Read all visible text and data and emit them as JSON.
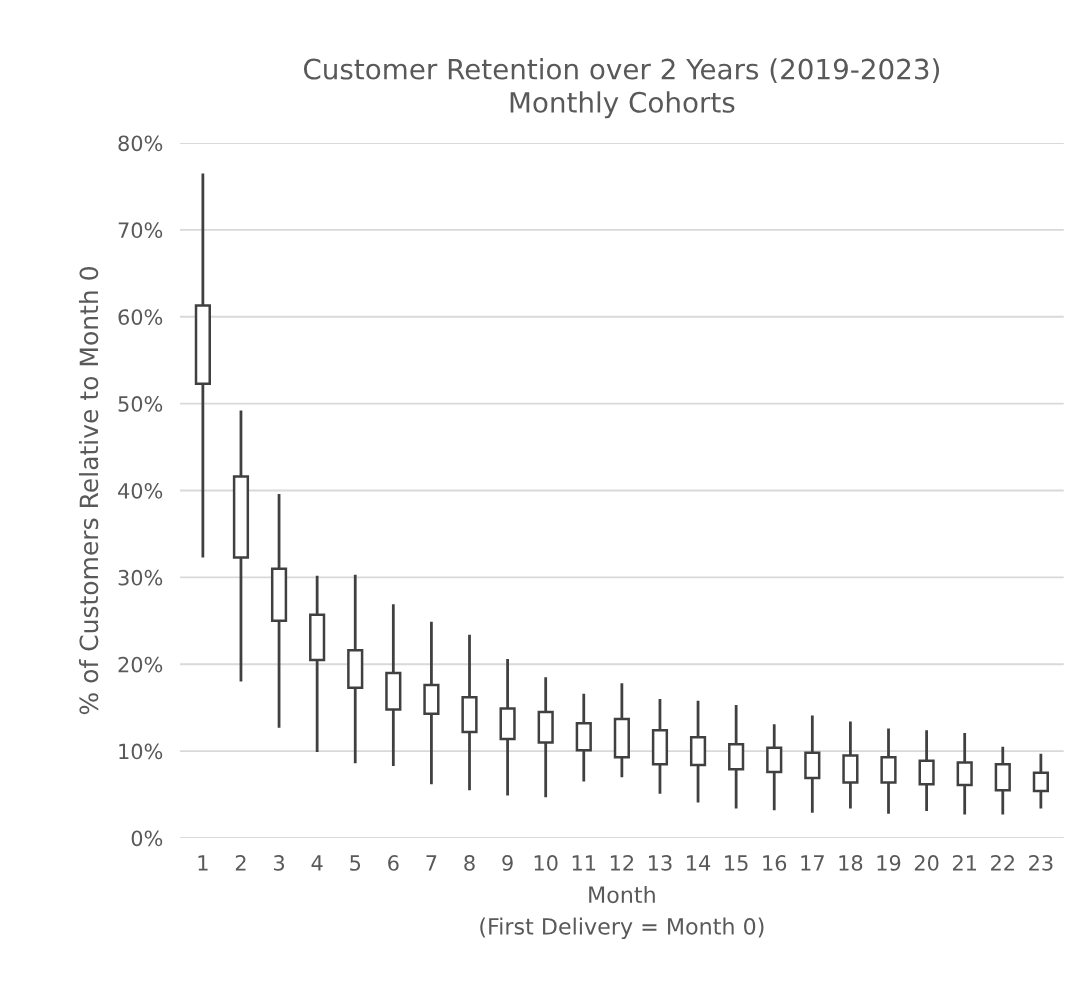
{
  "chart_data": {
    "type": "candlestick",
    "title": "Customer Retention over 2 Years (2019-2023)\nMonthly Cohorts",
    "xlabel": "Month\n(First Delivery = Month 0)",
    "ylabel": "% of Customers Relative to Month 0",
    "categories": [
      "1",
      "2",
      "3",
      "4",
      "5",
      "6",
      "7",
      "8",
      "9",
      "10",
      "11",
      "12",
      "13",
      "14",
      "15",
      "16",
      "17",
      "18",
      "19",
      "20",
      "21",
      "22",
      "23"
    ],
    "ohlc": [
      [
        52.3,
        76.5,
        32.3,
        61.3
      ],
      [
        32.3,
        49.2,
        18.0,
        41.6
      ],
      [
        25.0,
        39.6,
        12.7,
        31.0
      ],
      [
        20.5,
        30.2,
        9.9,
        25.7
      ],
      [
        17.3,
        30.3,
        8.6,
        21.6
      ],
      [
        14.8,
        26.9,
        8.3,
        19.0
      ],
      [
        14.3,
        24.9,
        6.2,
        17.6
      ],
      [
        12.2,
        23.4,
        5.5,
        16.2
      ],
      [
        11.4,
        20.6,
        4.9,
        14.9
      ],
      [
        11.0,
        18.5,
        4.7,
        14.5
      ],
      [
        10.1,
        16.6,
        6.5,
        13.2
      ],
      [
        9.3,
        17.8,
        7.0,
        13.7
      ],
      [
        8.5,
        16.0,
        5.1,
        12.4
      ],
      [
        8.4,
        15.8,
        4.1,
        11.6
      ],
      [
        7.9,
        15.3,
        3.4,
        10.8
      ],
      [
        7.6,
        13.1,
        3.2,
        10.4
      ],
      [
        6.9,
        14.1,
        2.9,
        9.8
      ],
      [
        6.4,
        13.4,
        3.4,
        9.5
      ],
      [
        6.4,
        12.6,
        2.8,
        9.3
      ],
      [
        6.2,
        12.4,
        3.1,
        8.9
      ],
      [
        6.1,
        12.1,
        2.7,
        8.7
      ],
      [
        5.5,
        10.5,
        2.7,
        8.5
      ],
      [
        5.4,
        9.7,
        3.4,
        7.5
      ]
    ],
    "color": "#404040",
    "ylim": [
      0,
      80
    ],
    "yticks": [
      {
        "value": 0,
        "label": "0%"
      },
      {
        "value": 10,
        "label": "10%"
      },
      {
        "value": 20,
        "label": "20%"
      },
      {
        "value": 30,
        "label": "30%"
      },
      {
        "value": 40,
        "label": "40%"
      },
      {
        "value": 50,
        "label": "50%"
      },
      {
        "value": 60,
        "label": "60%"
      },
      {
        "value": 70,
        "label": "70%"
      },
      {
        "value": 80,
        "label": "80%"
      }
    ],
    "grid": "y"
  }
}
